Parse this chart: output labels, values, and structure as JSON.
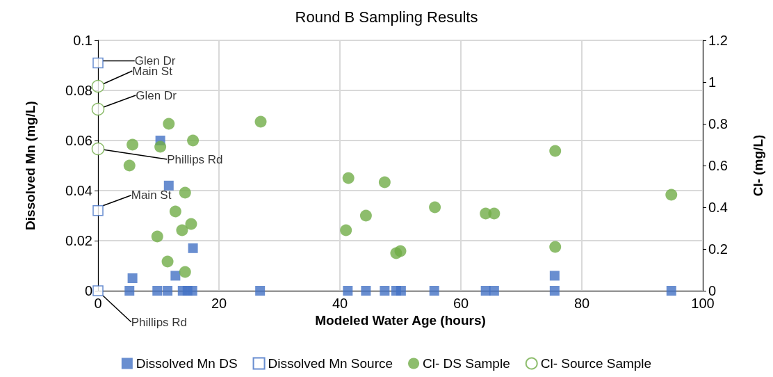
{
  "chart_data": {
    "type": "scatter",
    "title": "Round B Sampling Results",
    "xlabel": "Modeled Water Age (hours)",
    "ylabel": "Dissolved Mn (mg/L)",
    "y2label": "Cl- (mg/L)",
    "xlim": [
      0,
      100
    ],
    "xticks": [
      0,
      20,
      40,
      60,
      80,
      100
    ],
    "ylim": [
      0,
      0.1
    ],
    "yticks": [
      0,
      0.02,
      0.04,
      0.06,
      0.08,
      0.1
    ],
    "y2lim": [
      0,
      1.2
    ],
    "y2ticks": [
      0,
      0.2,
      0.4,
      0.6,
      0.8,
      1,
      1.2
    ],
    "grid": true,
    "legend": "bottom",
    "series": [
      {
        "name": "Dissolved Mn DS",
        "color": "#4472c4",
        "marker": "square",
        "x": [
          5.2,
          5.7,
          9.8,
          10.3,
          11.5,
          11.7,
          12.8,
          14.0,
          14.8,
          15.6,
          15.7,
          26.8,
          41.3,
          44.3,
          47.4,
          49.3,
          50.1,
          55.6,
          64.1,
          65.5,
          75.5,
          75.5,
          94.8
        ],
        "values": [
          0,
          0.005,
          0,
          0.06,
          0,
          0.042,
          0.006,
          0,
          0,
          0,
          0.017,
          0,
          0,
          0,
          0,
          0,
          0,
          0,
          0,
          0,
          0,
          0.006,
          0
        ]
      },
      {
        "name": "Dissolved Mn Source",
        "color": "#4472c4",
        "marker": "square",
        "x": [
          0,
          0,
          0
        ],
        "values": [
          0.091,
          0.032,
          0
        ],
        "value_labels": [
          "Glen Dr",
          "Main St",
          "Phillips Rd"
        ]
      },
      {
        "name": "Cl- DS Sample",
        "color": "#70ad47",
        "marker": "circle",
        "axis": "y2",
        "x": [
          5.2,
          5.7,
          9.8,
          10.3,
          11.5,
          11.7,
          12.8,
          13.9,
          14.4,
          14.4,
          15.4,
          15.7,
          26.9,
          41.0,
          41.4,
          44.3,
          47.4,
          49.3,
          50.0,
          55.7,
          64.1,
          65.5,
          75.6,
          75.6,
          94.8
        ],
        "values": [
          0.6,
          0.7,
          0.26,
          0.69,
          0.14,
          0.8,
          0.38,
          0.29,
          0.47,
          0.09,
          0.32,
          0.72,
          0.81,
          0.29,
          0.54,
          0.36,
          0.52,
          0.18,
          0.19,
          0.4,
          0.37,
          0.37,
          0.67,
          0.21,
          0.46
        ]
      },
      {
        "name": "Cl- Source Sample",
        "color": "#70ad47",
        "marker": "circle",
        "axis": "y2",
        "x": [
          0,
          0,
          0
        ],
        "values": [
          0.98,
          0.87,
          0.68
        ],
        "value_labels": [
          "Main St",
          "Glen Dr",
          "Phillips Rd"
        ]
      }
    ]
  }
}
